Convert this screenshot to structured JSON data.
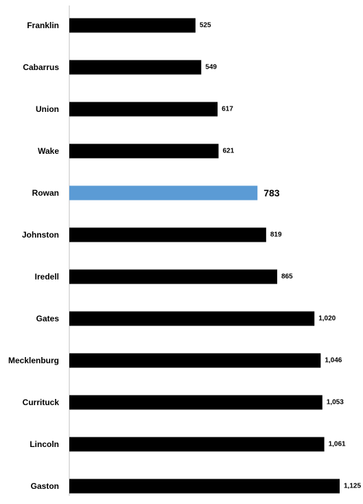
{
  "chart_data": {
    "type": "bar",
    "orientation": "horizontal",
    "categories": [
      "Franklin",
      "Cabarrus",
      "Union",
      "Wake",
      "Rowan",
      "Johnston",
      "Iredell",
      "Gates",
      "Mecklenburg",
      "Currituck",
      "Lincoln",
      "Gaston"
    ],
    "values": [
      525,
      549,
      617,
      621,
      783,
      819,
      865,
      1020,
      1046,
      1053,
      1061,
      1125
    ],
    "value_labels": [
      "525",
      "549",
      "617",
      "621",
      "783",
      "819",
      "865",
      "1,020",
      "1,046",
      "1,053",
      "1,061",
      "1,125"
    ],
    "highlight_category": "Rowan",
    "xlim": [
      0,
      1125
    ],
    "title": "",
    "xlabel": "",
    "ylabel": "",
    "grid": false,
    "legend": "none",
    "colors": {
      "bar": "#000000",
      "highlight_bar": "#5b9bd5",
      "highlight_label": "#5b9bd5",
      "axis": "#bfbfbf",
      "label": "#000000"
    }
  }
}
